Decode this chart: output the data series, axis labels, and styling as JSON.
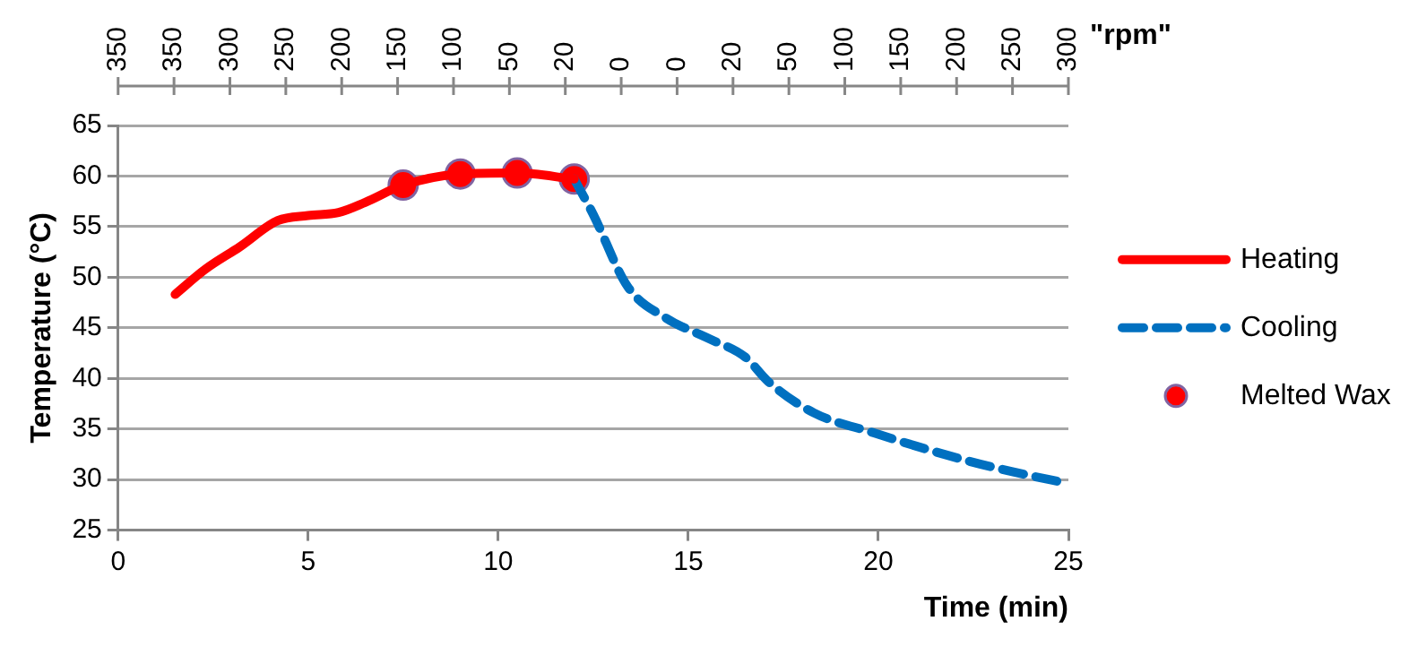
{
  "chart_data": {
    "type": "line",
    "xlabel": "Time (min)",
    "ylabel": "Temperature (°C)",
    "x2label": "\"rpm\"",
    "xlim": [
      0,
      25
    ],
    "xticks": [
      0,
      5,
      10,
      15,
      20,
      25
    ],
    "ylim": [
      25,
      65
    ],
    "yticks": [
      25,
      30,
      35,
      40,
      45,
      50,
      55,
      60,
      65
    ],
    "annotations": [
      "350",
      "350",
      "300",
      "250",
      "200",
      "150",
      "100",
      "50",
      "20",
      "0",
      "0",
      "20",
      "50",
      "100",
      "150",
      "200",
      "250",
      "300"
    ],
    "grid": "y",
    "legend": "right",
    "series": [
      {
        "name": "Heating",
        "color": "#ff0000",
        "line_style": "solid",
        "marker": "none",
        "x": [
          1.5,
          2.3,
          3.2,
          4.2,
          5,
          5.8,
          6.5,
          7.5,
          9,
          10.5,
          12
        ],
        "values": [
          48.3,
          50.8,
          53,
          55.6,
          56.1,
          56.4,
          57.4,
          59.1,
          60.2,
          60.3,
          59.7
        ]
      },
      {
        "name": "Cooling",
        "color": "#0070c0",
        "line_style": "dashed",
        "marker": "none",
        "x": [
          12,
          12.5,
          13.4,
          14.4,
          15.5,
          16.5,
          17.1,
          18.3,
          19.9,
          21,
          22.4,
          23.5,
          25
        ],
        "values": [
          59.7,
          56.2,
          49.1,
          46,
          44,
          42.1,
          39.7,
          36.6,
          34.6,
          33.3,
          31.8,
          30.8,
          29.6
        ]
      },
      {
        "name": "Melted Wax",
        "type": "scatter",
        "color": "#ff0000",
        "marker": "circle",
        "x": [
          7.5,
          9,
          10.5,
          12
        ],
        "values": [
          59.1,
          60.2,
          60.3,
          59.7
        ]
      }
    ]
  }
}
